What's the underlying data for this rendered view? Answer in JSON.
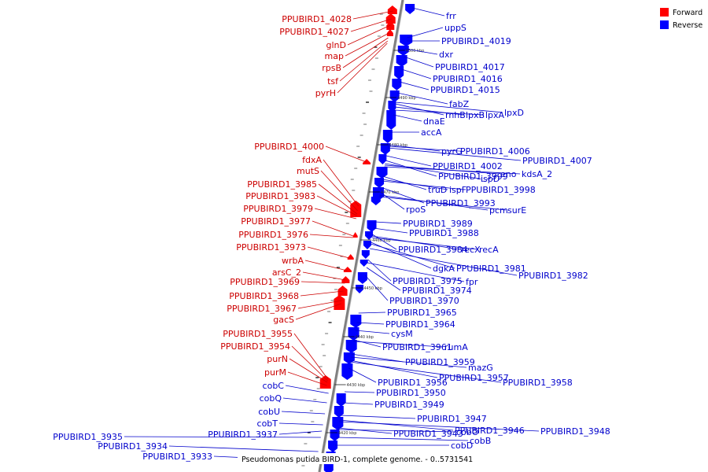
{
  "caption": "Pseudomonas putida BIRD-1, complete genome. - 0..5731541",
  "legend": [
    {
      "label": "Forward",
      "color": "#ff0000"
    },
    {
      "label": "Reverse",
      "color": "#0000ff"
    }
  ],
  "colors": {
    "forward": "#ff0000",
    "forward_label": "#cc0000",
    "reverse": "#0000ff",
    "reverse_label": "#0000cc",
    "backbone": "#7f7f7f"
  },
  "ticks": [
    "4500 kbp",
    "4490 kbp",
    "4480 kbp",
    "4470 kbp",
    "4460 kbp",
    "4450 kbp",
    "4440 kbp",
    "4430 kbp",
    "4420 kbp"
  ],
  "forward_labels": [
    "PPUBIRD1_4028",
    "PPUBIRD1_4027",
    "glnD",
    "map",
    "rpsB",
    "tsf",
    "pyrH",
    "PPUBIRD1_4000",
    "fdxA",
    "mutS",
    "PPUBIRD1_3985",
    "PPUBIRD1_3983",
    "PPUBIRD1_3979",
    "PPUBIRD1_3977",
    "PPUBIRD1_3976",
    "PPUBIRD1_3973",
    "wrbA",
    "arsC_2",
    "PPUBIRD1_3969",
    "PPUBIRD1_3968",
    "PPUBIRD1_3967",
    "gacS",
    "PPUBIRD1_3955",
    "PPUBIRD1_3954",
    "purN",
    "purM"
  ],
  "reverse_left_labels": [
    "cobC",
    "cobQ",
    "cobU",
    "cobT",
    "PPUBIRD1_3937",
    "PPUBIRD1_3935",
    "PPUBIRD1_3934",
    "PPUBIRD1_3933"
  ],
  "reverse_right_labels": [
    "frr",
    "uppS",
    "PPUBIRD1_4019",
    "dxr",
    "PPUBIRD1_4017",
    "PPUBIRD1_4016",
    "PPUBIRD1_4015",
    "fabZ",
    "lpxD",
    "rnhB",
    "lpxB",
    "lpxA",
    "dnaE",
    "accA",
    "pyrG",
    "PPUBIRD1_4006",
    "PPUBIRD1_4007",
    "PPUBIRD1_4002",
    "PPUBIRD1_3999",
    "ispD",
    "eno",
    "kdsA_2",
    "truD",
    "ispF",
    "PPUBIRD1_3998",
    "PPUBIRD1_3993",
    "rpoS",
    "pcm",
    "surE",
    "PPUBIRD1_3989",
    "PPUBIRD1_3988",
    "PPUBIRD1_3984",
    "recX",
    "recA",
    "dgkA",
    "PPUBIRD1_3981",
    "PPUBIRD1_3982",
    "PPUBIRD1_3975",
    "fpr",
    "PPUBIRD1_3974",
    "PPUBIRD1_3970",
    "PPUBIRD1_3965",
    "PPUBIRD1_3964",
    "cysM",
    "PPUBIRD1_3961",
    "rumA",
    "PPUBIRD1_3959",
    "mazG",
    "PPUBIRD1_3957",
    "PPUBIRD1_3958",
    "PPUBIRD1_3956",
    "PPUBIRD1_3950",
    "PPUBIRD1_3949",
    "PPUBIRD1_3947",
    "PPUBIRD1_3946",
    "PPUBIRD1_3948",
    "PPUBIRD1_3943",
    "cobO",
    "cobB",
    "cobD"
  ]
}
